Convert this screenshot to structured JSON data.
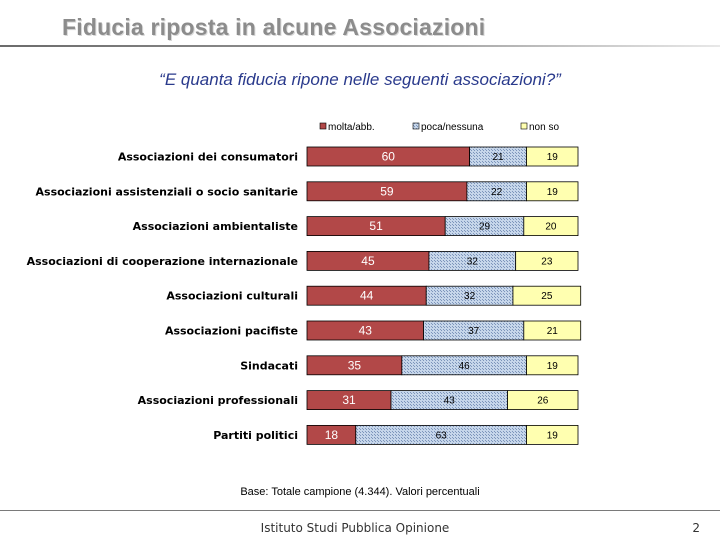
{
  "slide": {
    "title": "Fiducia riposta in alcune Associazioni",
    "question": "“E quanta fiducia ripone nelle seguenti associazioni?”",
    "base_note": "Base: Totale campione (4.344). Valori percentuali",
    "footer": "Istituto Studi Pubblica Opinione",
    "page_number": "2"
  },
  "chart_data": {
    "type": "bar",
    "orientation": "horizontal",
    "stacked": true,
    "legend_position": "top",
    "categories": [
      "Associazioni dei consumatori",
      "Associazioni assistenziali o socio sanitarie",
      "Associazioni ambientaliste",
      "Associazioni di cooperazione internazionale",
      "Associazioni culturali",
      "Associazioni pacifiste",
      "Sindacati",
      "Associazioni professionali",
      "Partiti politici"
    ],
    "series": [
      {
        "name": "molta/abb.",
        "color": "#b24848",
        "values": [
          60,
          59,
          51,
          45,
          44,
          43,
          35,
          31,
          18
        ]
      },
      {
        "name": "poca/nessuna",
        "color": "#a9c0dd",
        "values": [
          21,
          22,
          29,
          32,
          32,
          37,
          46,
          43,
          63
        ]
      },
      {
        "name": "non so",
        "color": "#ffffb0",
        "values": [
          19,
          19,
          20,
          23,
          25,
          21,
          19,
          26,
          19
        ]
      }
    ],
    "xlim": [
      0,
      100
    ]
  }
}
